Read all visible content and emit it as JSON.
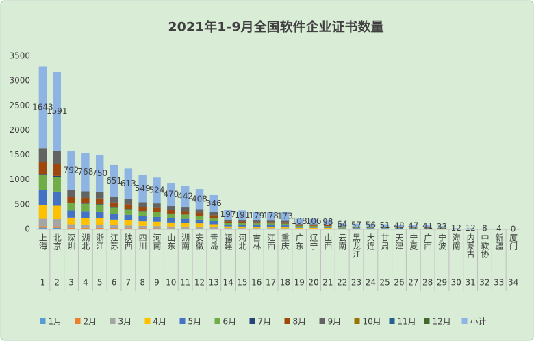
{
  "chart_data": {
    "type": "stacked_bar",
    "title": "2021年1-9月全国软件企业证书数量",
    "categories": [
      "上海",
      "北京",
      "深圳",
      "湖北",
      "浙江",
      "江苏",
      "陕西",
      "四川",
      "河南",
      "山东",
      "湖南",
      "安徽",
      "青岛",
      "福建",
      "河北",
      "吉林",
      "江西",
      "重庆",
      "广东",
      "辽宁",
      "山西",
      "云南",
      "黑龙江",
      "大连",
      "甘肃",
      "天津",
      "宁夏",
      "广西",
      "宁波",
      "海南",
      "内蒙古",
      "中软协",
      "新疆",
      "厦门"
    ],
    "category_numbers": [
      1,
      2,
      3,
      4,
      5,
      6,
      7,
      8,
      9,
      10,
      11,
      12,
      13,
      14,
      15,
      16,
      17,
      18,
      19,
      20,
      21,
      22,
      23,
      24,
      25,
      26,
      27,
      28,
      29,
      30,
      31,
      32,
      33,
      34
    ],
    "ylim": [
      0,
      3500
    ],
    "yticks": [
      0,
      500,
      1000,
      1500,
      2000,
      2500,
      3000,
      3500
    ],
    "grid": false,
    "legend": "bottom",
    "series": [
      {
        "name": "1月",
        "color": "#5b9bd5",
        "values": [
          33,
          32,
          16,
          15,
          15,
          13,
          12,
          11,
          10,
          9,
          9,
          8,
          7,
          4,
          4,
          4,
          4,
          3,
          2,
          2,
          2,
          1,
          1,
          1,
          1,
          1,
          1,
          1,
          1,
          0,
          0,
          0,
          0,
          0
        ]
      },
      {
        "name": "2月",
        "color": "#ed7d31",
        "values": [
          33,
          32,
          16,
          15,
          15,
          13,
          12,
          11,
          10,
          9,
          9,
          8,
          7,
          4,
          4,
          4,
          4,
          3,
          2,
          2,
          2,
          1,
          1,
          1,
          1,
          1,
          1,
          1,
          1,
          0,
          0,
          0,
          0,
          0
        ]
      },
      {
        "name": "3月",
        "color": "#a5a5a5",
        "values": [
          148,
          143,
          71,
          69,
          68,
          59,
          55,
          49,
          47,
          42,
          40,
          37,
          31,
          18,
          17,
          16,
          16,
          16,
          10,
          10,
          9,
          6,
          5,
          5,
          5,
          4,
          4,
          4,
          3,
          1,
          1,
          1,
          0,
          0
        ]
      },
      {
        "name": "4月",
        "color": "#ffc000",
        "values": [
          279,
          270,
          135,
          131,
          128,
          111,
          104,
          93,
          89,
          80,
          75,
          69,
          59,
          33,
          32,
          30,
          30,
          29,
          18,
          18,
          17,
          11,
          10,
          10,
          9,
          8,
          8,
          7,
          6,
          2,
          2,
          1,
          1,
          0
        ]
      },
      {
        "name": "5月",
        "color": "#4472c4",
        "values": [
          296,
          286,
          143,
          138,
          135,
          117,
          110,
          99,
          94,
          85,
          80,
          73,
          62,
          35,
          34,
          32,
          32,
          31,
          19,
          19,
          18,
          12,
          10,
          10,
          9,
          9,
          8,
          7,
          6,
          2,
          2,
          1,
          1,
          0
        ]
      },
      {
        "name": "6月",
        "color": "#70ad47",
        "values": [
          312,
          302,
          150,
          146,
          143,
          124,
          116,
          104,
          100,
          89,
          84,
          78,
          66,
          37,
          36,
          34,
          34,
          33,
          21,
          20,
          19,
          12,
          11,
          11,
          10,
          9,
          9,
          8,
          6,
          2,
          2,
          2,
          1,
          0
        ]
      },
      {
        "name": "7月",
        "color": "#264478",
        "values": [
          16,
          16,
          8,
          8,
          8,
          7,
          6,
          5,
          5,
          5,
          4,
          4,
          3,
          2,
          2,
          2,
          2,
          2,
          1,
          1,
          1,
          1,
          1,
          1,
          1,
          0,
          0,
          0,
          0,
          0,
          0,
          0,
          0,
          0
        ]
      },
      {
        "name": "8月",
        "color": "#9e480e",
        "values": [
          246,
          239,
          119,
          115,
          113,
          98,
          92,
          82,
          79,
          71,
          66,
          61,
          52,
          30,
          29,
          27,
          27,
          26,
          16,
          16,
          15,
          10,
          9,
          8,
          8,
          7,
          7,
          6,
          5,
          2,
          2,
          1,
          0,
          0
        ]
      },
      {
        "name": "9月",
        "color": "#636363",
        "values": [
          280,
          271,
          134,
          131,
          125,
          109,
          106,
          95,
          90,
          80,
          75,
          70,
          59,
          34,
          33,
          30,
          29,
          30,
          19,
          18,
          15,
          10,
          9,
          9,
          7,
          9,
          9,
          7,
          5,
          3,
          3,
          2,
          1,
          0
        ]
      },
      {
        "name": "10月",
        "color": "#997300",
        "values": [
          0,
          0,
          0,
          0,
          0,
          0,
          0,
          0,
          0,
          0,
          0,
          0,
          0,
          0,
          0,
          0,
          0,
          0,
          0,
          0,
          0,
          0,
          0,
          0,
          0,
          0,
          0,
          0,
          0,
          0,
          0,
          0,
          0,
          0
        ]
      },
      {
        "name": "11月",
        "color": "#255e91",
        "values": [
          0,
          0,
          0,
          0,
          0,
          0,
          0,
          0,
          0,
          0,
          0,
          0,
          0,
          0,
          0,
          0,
          0,
          0,
          0,
          0,
          0,
          0,
          0,
          0,
          0,
          0,
          0,
          0,
          0,
          0,
          0,
          0,
          0,
          0
        ]
      },
      {
        "name": "12月",
        "color": "#43682b",
        "values": [
          0,
          0,
          0,
          0,
          0,
          0,
          0,
          0,
          0,
          0,
          0,
          0,
          0,
          0,
          0,
          0,
          0,
          0,
          0,
          0,
          0,
          0,
          0,
          0,
          0,
          0,
          0,
          0,
          0,
          0,
          0,
          0,
          0,
          0
        ]
      },
      {
        "name": "小计",
        "color": "#8db4e2",
        "values": [
          1643,
          1591,
          792,
          768,
          750,
          651,
          613,
          549,
          524,
          470,
          442,
          408,
          346,
          197,
          191,
          179,
          178,
          173,
          108,
          106,
          98,
          64,
          57,
          56,
          51,
          48,
          47,
          41,
          33,
          12,
          12,
          8,
          4,
          0
        ]
      }
    ]
  }
}
